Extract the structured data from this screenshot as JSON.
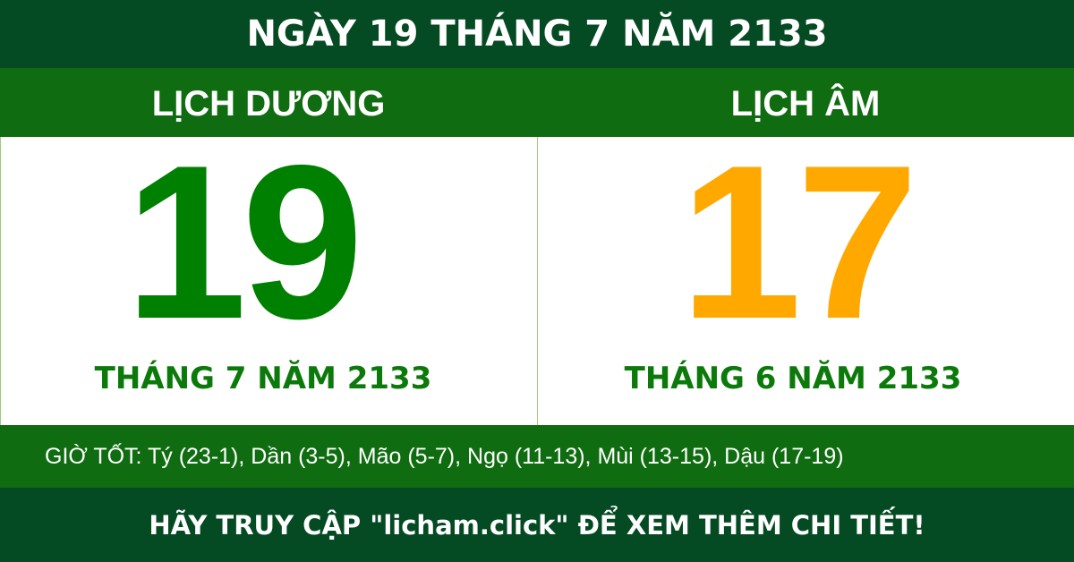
{
  "title": "NGÀY 19 THÁNG 7 NĂM 2133",
  "solar": {
    "label": "LỊCH DƯƠNG",
    "day": "19",
    "month_year": "THÁNG 7 NĂM 2133"
  },
  "lunar": {
    "label": "LỊCH ÂM",
    "day": "17",
    "month_year": "THÁNG 6 NĂM 2133"
  },
  "good_hours": "GIỜ TỐT: Tý (23-1), Dần (3-5), Mão (5-7), Ngọ (11-13), Mùi (13-15), Dậu (17-19)",
  "footer": "HÃY TRUY CẬP \"licham.click\" ĐỂ XEM THÊM CHI TIẾT!",
  "colors": {
    "dark_green": "#044a22",
    "green": "#106c10",
    "solar_day": "#008000",
    "lunar_day": "#ffa800"
  }
}
